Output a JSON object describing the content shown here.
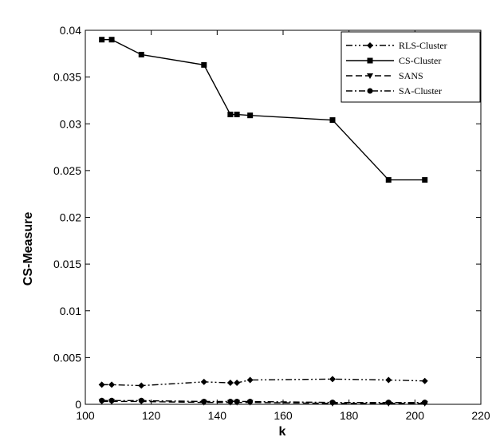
{
  "chart_data": {
    "type": "line",
    "xlabel": "k",
    "ylabel": "CS-Measure",
    "xlim": [
      100,
      220
    ],
    "ylim": [
      0,
      0.04
    ],
    "xticks": [
      100,
      120,
      140,
      160,
      180,
      200,
      220
    ],
    "yticks": [
      0,
      0.005,
      0.01,
      0.015,
      0.02,
      0.025,
      0.03,
      0.035,
      0.04
    ],
    "ytick_labels": [
      "0",
      "0.005",
      "0.01",
      "0.015",
      "0.02",
      "0.025",
      "0.03",
      "0.035",
      "0.04"
    ],
    "grid": false,
    "legend_position": "top-right",
    "series": [
      {
        "name": "RLS-Cluster",
        "line_style": "dash-dot-dot",
        "marker": "diamond",
        "color": "#000000",
        "x": [
          105,
          108,
          117,
          136,
          144,
          146,
          150,
          175,
          192,
          203
        ],
        "values": [
          0.0021,
          0.0021,
          0.002,
          0.0024,
          0.0023,
          0.0023,
          0.0026,
          0.0027,
          0.0026,
          0.0025
        ]
      },
      {
        "name": "CS-Cluster",
        "line_style": "solid",
        "marker": "square",
        "color": "#000000",
        "x": [
          105,
          108,
          117,
          136,
          144,
          146,
          150,
          175,
          192,
          203
        ],
        "values": [
          0.039,
          0.039,
          0.0374,
          0.0363,
          0.031,
          0.031,
          0.0309,
          0.0304,
          0.024,
          0.024
        ]
      },
      {
        "name": "SANS",
        "line_style": "dashed",
        "marker": "triangle-down",
        "color": "#000000",
        "x": [
          105,
          108,
          117,
          136,
          144,
          146,
          150,
          175,
          192,
          203
        ],
        "values": [
          0.0003,
          0.0003,
          0.0003,
          0.0002,
          0.0002,
          0.0002,
          0.0002,
          0.0001,
          0.0001,
          0.0001
        ]
      },
      {
        "name": "SA-Cluster",
        "line_style": "dash-dot",
        "marker": "circle",
        "color": "#000000",
        "x": [
          105,
          108,
          117,
          136,
          144,
          146,
          150,
          175,
          192,
          203
        ],
        "values": [
          0.0004,
          0.0004,
          0.0004,
          0.0003,
          0.0003,
          0.0003,
          0.0003,
          0.0002,
          0.0002,
          0.0002
        ]
      }
    ]
  }
}
